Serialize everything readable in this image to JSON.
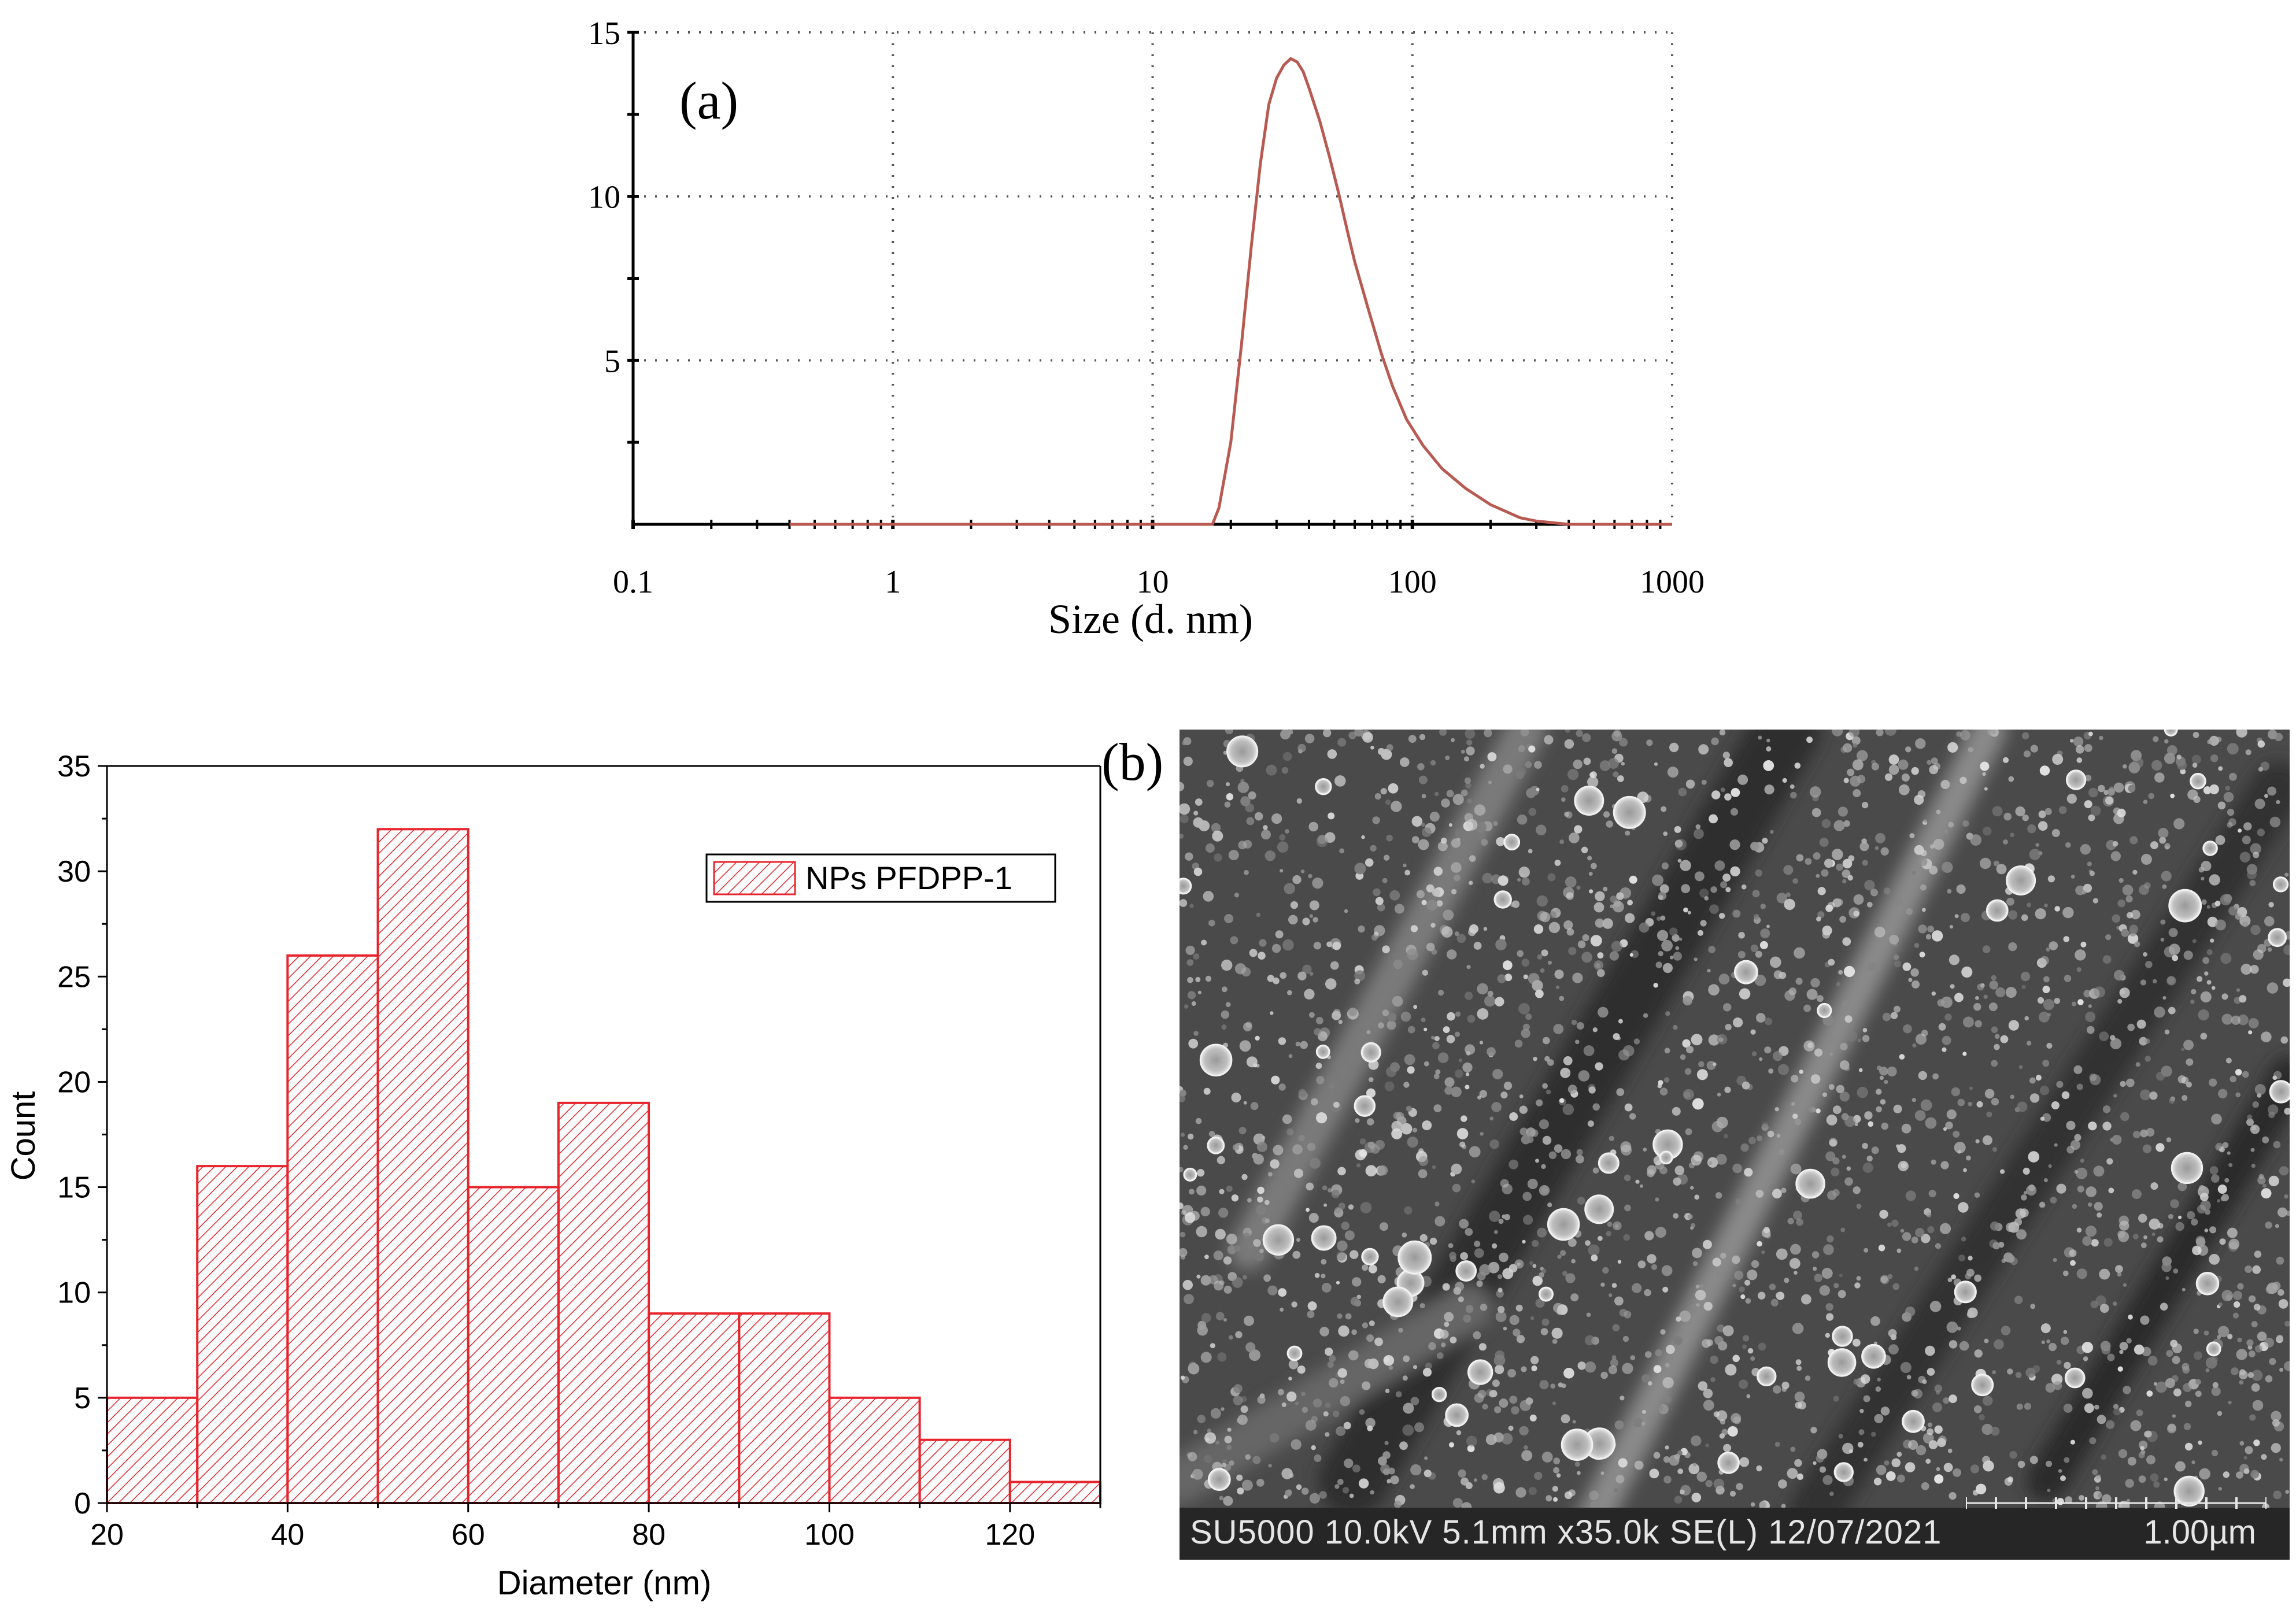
{
  "panel_a": {
    "panel_label": "(a)"
  },
  "panel_b": {
    "panel_label": "(b)",
    "sem_info": "SU5000 10.0kV 5.1mm x35.0k SE(L) 12/07/2021",
    "scale_bar_label": "1.00µm"
  },
  "colors": {
    "dls_curve": "#b85a52",
    "hist_bar": "#e8252c",
    "axis": "#000000",
    "grid": "#555555"
  },
  "chart_data": [
    {
      "type": "line",
      "xlabel": "Size (d. nm)",
      "ylabel": "",
      "x_scale": "log",
      "xlim": [
        0.1,
        1000
      ],
      "ylim": [
        0,
        15
      ],
      "x_ticks": [
        "0.1",
        "1",
        "10",
        "100",
        "1000"
      ],
      "y_ticks": [
        "5",
        "10",
        "15"
      ],
      "grid": true,
      "series": [
        {
          "x": [
            0.4,
            1,
            5,
            10,
            17,
            18,
            20,
            22,
            24,
            26,
            28,
            30,
            32,
            34,
            36,
            38,
            40,
            44,
            48,
            52,
            56,
            60,
            68,
            76,
            84,
            95,
            110,
            130,
            160,
            200,
            260,
            300,
            400,
            600,
            1000
          ],
          "y": [
            0,
            0,
            0,
            0,
            0,
            0.5,
            2.5,
            5.5,
            8.5,
            11,
            12.8,
            13.6,
            14.0,
            14.2,
            14.1,
            13.8,
            13.3,
            12.3,
            11.2,
            10.1,
            9.0,
            8.0,
            6.5,
            5.2,
            4.2,
            3.2,
            2.4,
            1.7,
            1.1,
            0.6,
            0.2,
            0.1,
            0,
            0,
            0
          ]
        }
      ]
    },
    {
      "type": "bar",
      "title": "",
      "xlabel": "Diameter (nm)",
      "ylabel": "Count",
      "xlim": [
        20,
        130
      ],
      "ylim": [
        0,
        35
      ],
      "x_ticks": [
        "20",
        "40",
        "60",
        "80",
        "100",
        "120"
      ],
      "y_ticks": [
        "0",
        "5",
        "10",
        "15",
        "20",
        "25",
        "30",
        "35"
      ],
      "legend": "top-right",
      "series": [
        {
          "name": "NPs PFDPP-1",
          "bin_edges": [
            20,
            30,
            40,
            50,
            60,
            70,
            80,
            90,
            100,
            110,
            120,
            130
          ],
          "values": [
            5,
            16,
            26,
            32,
            15,
            19,
            9,
            9,
            5,
            3,
            1
          ]
        }
      ]
    }
  ]
}
